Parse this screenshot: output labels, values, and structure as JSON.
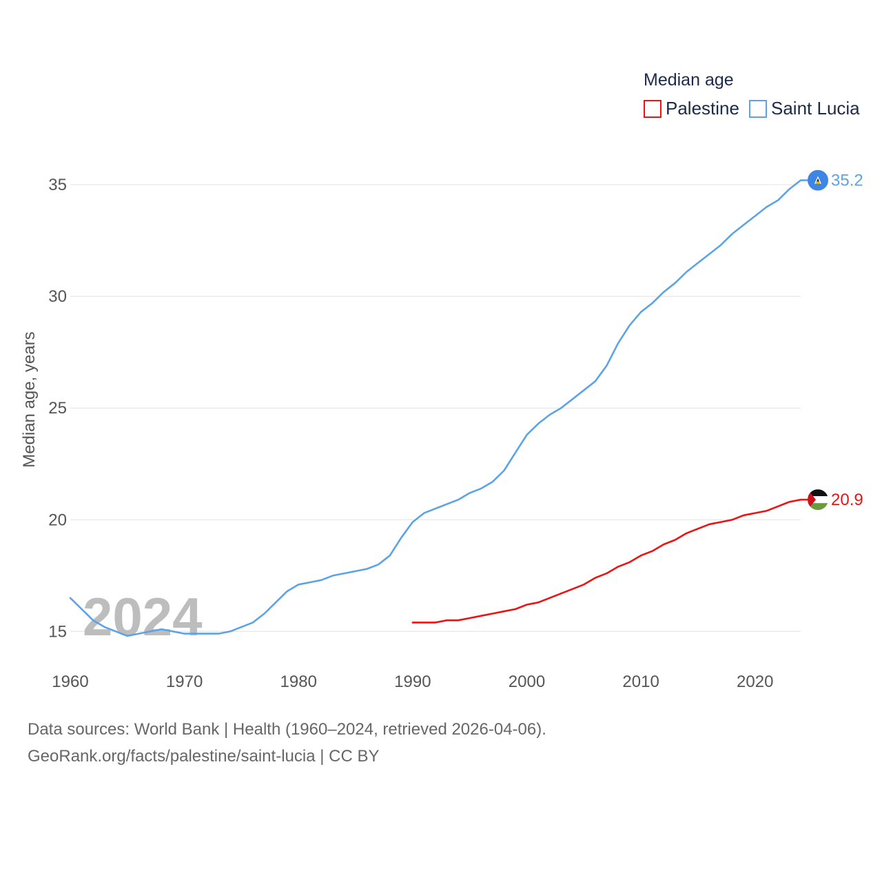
{
  "chart_data": {
    "type": "line",
    "title": "Median age",
    "ylabel": "Median age, years",
    "xlabel": "",
    "xlim": [
      1960,
      2024
    ],
    "ylim": [
      13.1,
      37.1
    ],
    "yticks": [
      15,
      20,
      25,
      30,
      35
    ],
    "xticks": [
      1960,
      1970,
      1980,
      1990,
      2000,
      2010,
      2020
    ],
    "year_watermark": "2024",
    "series": [
      {
        "name": "Palestine",
        "color": "#ee1111",
        "end_label": "20.9",
        "flag_icon": "palestine-flag-icon",
        "x": [
          1990,
          1991,
          1992,
          1993,
          1994,
          1995,
          1996,
          1997,
          1998,
          1999,
          2000,
          2001,
          2002,
          2003,
          2004,
          2005,
          2006,
          2007,
          2008,
          2009,
          2010,
          2011,
          2012,
          2013,
          2014,
          2015,
          2016,
          2017,
          2018,
          2019,
          2020,
          2021,
          2022,
          2023,
          2024
        ],
        "values": [
          15.4,
          15.4,
          15.4,
          15.5,
          15.5,
          15.6,
          15.7,
          15.8,
          15.9,
          16.0,
          16.2,
          16.3,
          16.5,
          16.7,
          16.9,
          17.1,
          17.4,
          17.6,
          17.9,
          18.1,
          18.4,
          18.6,
          18.9,
          19.1,
          19.4,
          19.6,
          19.8,
          19.9,
          20.0,
          20.2,
          20.3,
          20.4,
          20.6,
          20.8,
          20.9
        ]
      },
      {
        "name": "Saint Lucia",
        "color": "#5ba3e6",
        "end_label": "35.2",
        "flag_icon": "saint-lucia-flag-icon",
        "x": [
          1960,
          1961,
          1962,
          1963,
          1964,
          1965,
          1966,
          1967,
          1968,
          1969,
          1970,
          1971,
          1972,
          1973,
          1974,
          1975,
          1976,
          1977,
          1978,
          1979,
          1980,
          1981,
          1982,
          1983,
          1984,
          1985,
          1986,
          1987,
          1988,
          1989,
          1990,
          1991,
          1992,
          1993,
          1994,
          1995,
          1996,
          1997,
          1998,
          1999,
          2000,
          2001,
          2002,
          2003,
          2004,
          2005,
          2006,
          2007,
          2008,
          2009,
          2010,
          2011,
          2012,
          2013,
          2014,
          2015,
          2016,
          2017,
          2018,
          2019,
          2020,
          2021,
          2022,
          2023,
          2024
        ],
        "values": [
          16.5,
          16.0,
          15.5,
          15.2,
          15.0,
          14.8,
          14.9,
          15.0,
          15.1,
          15.0,
          14.9,
          14.9,
          14.9,
          14.9,
          15.0,
          15.2,
          15.4,
          15.8,
          16.3,
          16.8,
          17.1,
          17.2,
          17.3,
          17.5,
          17.6,
          17.7,
          17.8,
          18.0,
          18.4,
          19.2,
          19.9,
          20.3,
          20.5,
          20.7,
          20.9,
          21.2,
          21.4,
          21.7,
          22.2,
          23.0,
          23.8,
          24.3,
          24.7,
          25.0,
          25.4,
          25.8,
          26.2,
          26.9,
          27.9,
          28.7,
          29.3,
          29.7,
          30.2,
          30.6,
          31.1,
          31.5,
          31.9,
          32.3,
          32.8,
          33.2,
          33.6,
          34.0,
          34.3,
          34.8,
          35.2
        ]
      }
    ]
  },
  "footer": {
    "source_line": "Data sources: World Bank | Health (1960–2024, retrieved 2026-04-06).",
    "url_line": "GeoRank.org/facts/palestine/saint-lucia | CC BY"
  }
}
